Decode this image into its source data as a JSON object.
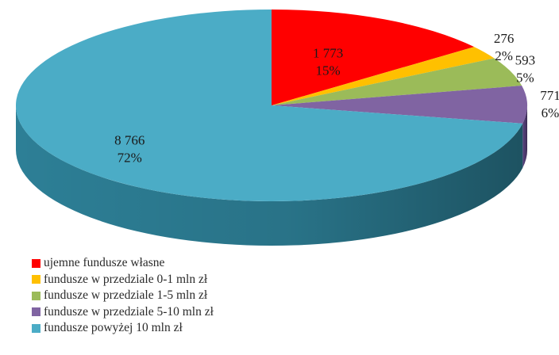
{
  "chart_data": {
    "type": "pie",
    "title": "",
    "categories": [
      "ujemne fundusze własne",
      "fundusze w przedziale 0-1 mln zł",
      "fundusze w przedziale 1-5 mln zł",
      "fundusze w przedziale 5-10 mln zł",
      "fundusze powyżej 10 mln zł"
    ],
    "values": [
      1773,
      276,
      593,
      771,
      8766
    ],
    "value_labels": [
      "1 773",
      "276",
      "593",
      "771",
      "8 766"
    ],
    "percent_labels": [
      "15%",
      "2%",
      "5%",
      "6%",
      "72%"
    ],
    "colors": [
      "#ff0000",
      "#ffc000",
      "#9bbb59",
      "#8064a2",
      "#4bacc6"
    ],
    "side_colors": [
      "#a80000",
      "#b08400",
      "#6a8a3a",
      "#55407a",
      "#2d7f96"
    ],
    "legend_position": "bottom-left",
    "style": "3d"
  }
}
